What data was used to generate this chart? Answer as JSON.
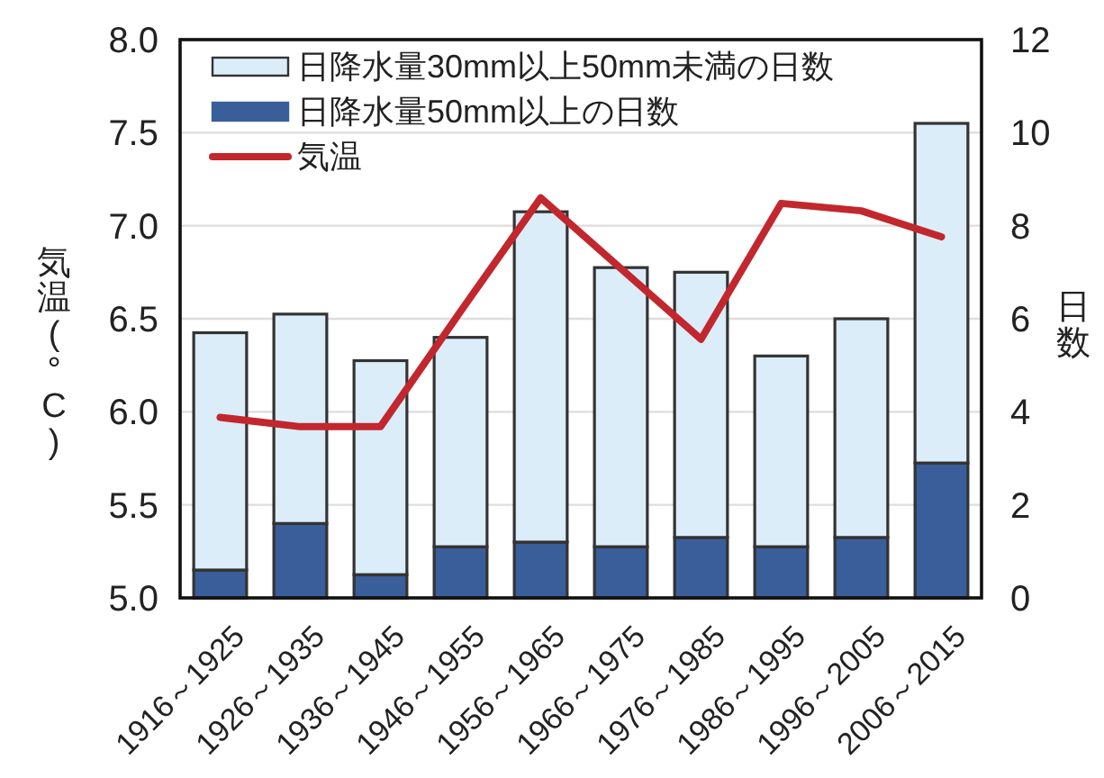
{
  "chart_data": {
    "type": "bar",
    "stacked": true,
    "ylabel": "気温(°C)",
    "y2label": "日数",
    "categories": [
      "1916～1925",
      "1926～1935",
      "1936～1945",
      "1946～1955",
      "1956～1965",
      "1966～1975",
      "1976～1985",
      "1986～1995",
      "1996～2005",
      "2006～2015"
    ],
    "series": [
      {
        "name": "日降水量50mm以上の日数",
        "color": "#3a5e99",
        "axis": "y2",
        "values": [
          0.6,
          1.6,
          0.5,
          1.1,
          1.2,
          1.1,
          1.3,
          1.1,
          1.3,
          2.9
        ]
      },
      {
        "name": "日降水量30mm以上50mm未満の日数",
        "color": "#dbedf9",
        "axis": "y2",
        "values": [
          5.1,
          4.5,
          4.6,
          4.5,
          7.1,
          6.0,
          5.7,
          4.1,
          4.7,
          7.3
        ]
      },
      {
        "name": "気温",
        "type": "line",
        "color": "#c1272d",
        "values": [
          5.97,
          5.92,
          5.92,
          6.54,
          7.15,
          6.77,
          6.39,
          7.12,
          7.08,
          6.94
        ]
      }
    ],
    "ylim": [
      5.0,
      8.0
    ],
    "yticks": [
      {
        "value": 5.0,
        "label": "5.0"
      },
      {
        "value": 5.5,
        "label": "5.5"
      },
      {
        "value": 6.0,
        "label": "6.0"
      },
      {
        "value": 6.5,
        "label": "6.5"
      },
      {
        "value": 7.0,
        "label": "7.0"
      },
      {
        "value": 7.5,
        "label": "7.5"
      },
      {
        "value": 8.0,
        "label": "8.0"
      }
    ],
    "y2lim": [
      0,
      12
    ],
    "y2ticks": [
      0,
      2,
      4,
      6,
      8,
      10,
      12
    ],
    "grid": "y",
    "legend": "top left"
  }
}
